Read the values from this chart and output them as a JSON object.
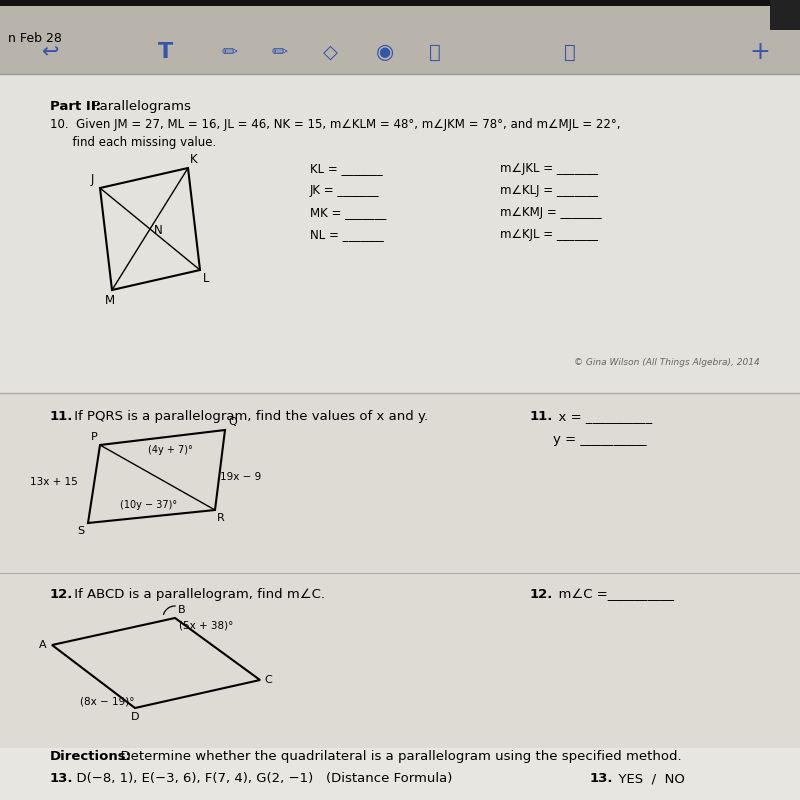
{
  "bg_color": "#c8c4bc",
  "paper_color": "#e8e6e0",
  "toolbar_color": "#b8b4ac",
  "black_strip_color": "#111111",
  "header_text": "n Feb 28",
  "part_ii_label": "Part II:",
  "part_ii_text": " Parallelograms",
  "q10_text": "10.  Given JM = 27, ML = 16, JL = 46, NK = 15, m∠KLM = 48°, m∠JKM = 78°, and m∠MJL = 22°,",
  "q10_text2": "      find each missing value.",
  "q10_answers_col1": [
    "KL = _______",
    "JK = _______",
    "MK = _______",
    "NL = _______"
  ],
  "q10_answers_col2": [
    "m∠JKL = _______",
    "m∠KLJ = _______",
    "m∠KMJ = _______",
    "m∠KJL = _______"
  ],
  "copyright": "© Gina Wilson (All Things Algebra), 2014",
  "q11_bold": "11.",
  "q11_text": " If PQRS is a parallelogram, find the values of x and y.",
  "q11_ans1_bold": "11.",
  "q11_ans1": "  x = __________",
  "q11_ans2": "y = __________",
  "q11_side_left": "13x + 15",
  "q11_side_right": "19x − 9",
  "q11_angle_top": "(4y + 7)°",
  "q11_angle_bottom": "(10y − 37)°",
  "q12_bold": "12.",
  "q12_text": " If ABCD is a parallelogram, find m∠C.",
  "q12_ans_bold": "12.",
  "q12_ans": "  m∠C =__________",
  "q12_angle_top": "(5x + 38)°",
  "q12_angle_bottom": "(8x − 19)°",
  "q13_dir_bold": "Directions:",
  "q13_dir_text": "  Determine whether the quadrilateral is a parallelogram using the specified method.",
  "q13_bold": "13.",
  "q13_text": "  D(−8, 1), E(−3, 6), F(7, 4), G(2, −1)   (Distance Formula)",
  "q13_ans_bold": "13.",
  "q13_ans": "  YES  /  NO"
}
